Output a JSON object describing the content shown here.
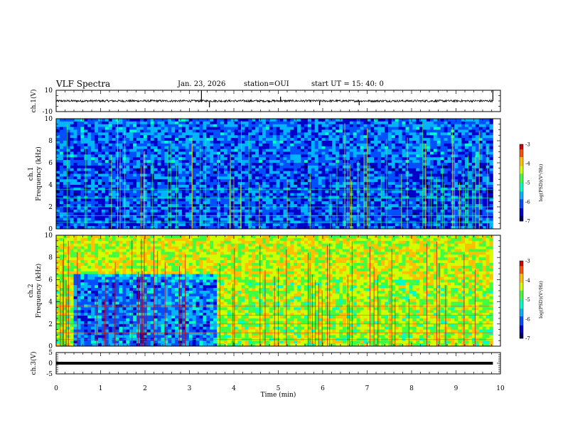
{
  "header": {
    "title": "VLF Spectra",
    "date": "Jan. 23, 2026",
    "station": "station=OUI",
    "start_time": "start  UT =  15: 40: 0"
  },
  "colors": {
    "axis": "#000000",
    "cmap": [
      "#000060",
      "#0000c8",
      "#0050ff",
      "#00b4ff",
      "#00ffc8",
      "#40ff40",
      "#d0ff00",
      "#ffc000",
      "#ff5000",
      "#d00000"
    ]
  },
  "chart_data": [
    {
      "type": "line",
      "id": "ch1v",
      "ylabel": "ch.1(V)",
      "ylim": [
        -10,
        10
      ],
      "yticks": [
        "10",
        "-10"
      ],
      "baseline": 0,
      "description_values": {
        "noise_amplitude": 1
      },
      "spikes": [
        {
          "x": 3.27,
          "y": 10
        },
        {
          "x": 3.45,
          "y": -6
        },
        {
          "x": 5.05,
          "y": 4
        },
        {
          "x": 5.93,
          "y": -4
        },
        {
          "x": 6.82,
          "y": -4
        },
        {
          "x": 9.83,
          "y": 10
        }
      ]
    },
    {
      "type": "heatmap",
      "id": "ch1",
      "ylabel": "ch.1\nFrequency (kHz)",
      "ylim": [
        0,
        10
      ],
      "yticks": [
        "0",
        "2",
        "4",
        "6",
        "8",
        "10"
      ],
      "xlim": [
        0,
        9.83
      ],
      "colorbar": {
        "label": "log(PSD)(V²/Hz)",
        "ticks": [
          "-3",
          "-4",
          "-5",
          "-6",
          "-7"
        ],
        "range": [
          -7,
          -3
        ]
      },
      "mean_log_psd": -6.2
    },
    {
      "type": "heatmap",
      "id": "ch2",
      "ylabel": "ch.2\nFrequency (kHz)",
      "ylim": [
        0,
        10
      ],
      "yticks": [
        "0",
        "2",
        "4",
        "6",
        "8",
        "10"
      ],
      "xlim": [
        0,
        9.83
      ],
      "colorbar": {
        "label": "log(PSD)(V²/Hz)",
        "ticks": [
          "-3",
          "-4",
          "-5",
          "-6",
          "-7"
        ],
        "range": [
          -7,
          -3
        ]
      },
      "mean_log_psd": -4.5,
      "quiet_interval": {
        "x": [
          0.4,
          3.6
        ],
        "y": [
          0,
          6.5
        ]
      }
    },
    {
      "type": "line",
      "id": "ch3v",
      "ylabel": "ch.3(V)",
      "ylim": [
        -5,
        5
      ],
      "yticks": [
        "5",
        "0",
        "-5"
      ],
      "baseline": 0
    }
  ],
  "x_axis": {
    "label": "Time  (min)",
    "xlim": [
      0,
      10
    ],
    "ticks": [
      "0",
      "1",
      "2",
      "3",
      "4",
      "5",
      "6",
      "7",
      "8",
      "9",
      "10"
    ]
  }
}
